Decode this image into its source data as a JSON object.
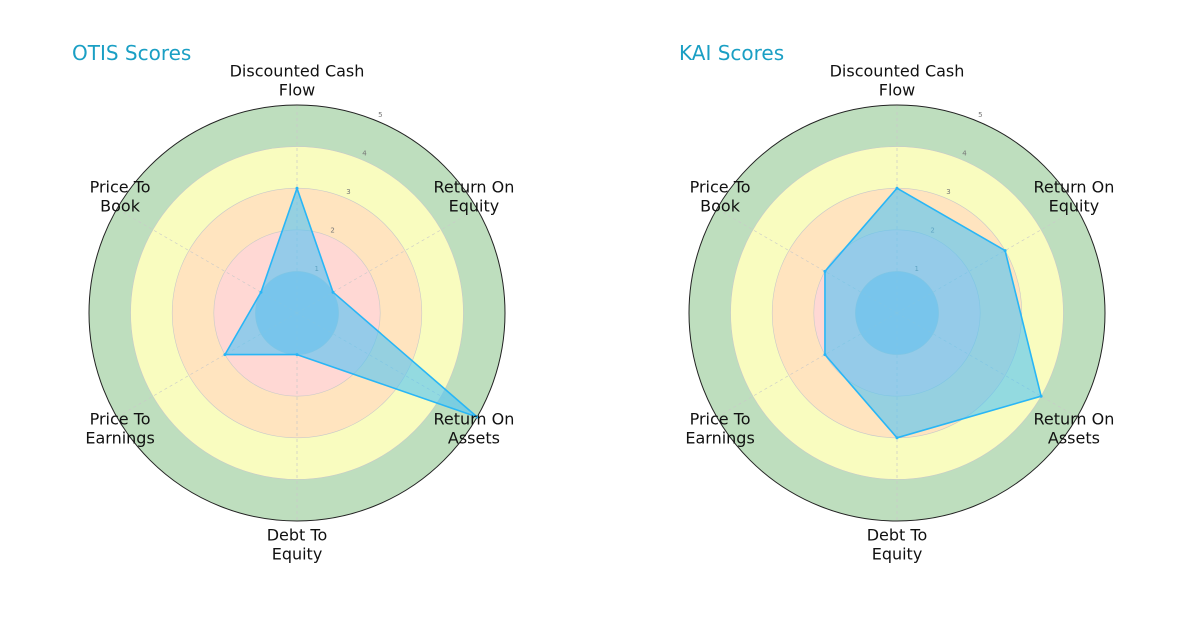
{
  "chart_data": [
    {
      "type": "radar",
      "title": "OTIS Scores",
      "axes": [
        [
          "Discounted Cash",
          "Flow"
        ],
        [
          "Return On",
          "Equity"
        ],
        [
          "Return On",
          "Assets"
        ],
        [
          "Debt To",
          "Equity"
        ],
        [
          "Price To",
          "Earnings"
        ],
        [
          "Price To",
          "Book"
        ]
      ],
      "values": [
        3,
        1,
        5,
        1,
        2,
        1
      ],
      "rlim": [
        0,
        5
      ],
      "rticks": [
        "1",
        "2",
        "3",
        "4",
        "5"
      ],
      "grid": true,
      "colors": {
        "fill": "#4fc3f7",
        "line": "#29b6f6"
      }
    },
    {
      "type": "radar",
      "title": "KAI Scores",
      "axes": [
        [
          "Discounted Cash",
          "Flow"
        ],
        [
          "Return On",
          "Equity"
        ],
        [
          "Return On",
          "Assets"
        ],
        [
          "Debt To",
          "Equity"
        ],
        [
          "Price To",
          "Earnings"
        ],
        [
          "Price To",
          "Book"
        ]
      ],
      "values": [
        3,
        3,
        4,
        3,
        2,
        2
      ],
      "rlim": [
        0,
        5
      ],
      "rticks": [
        "1",
        "2",
        "3",
        "4",
        "5"
      ],
      "grid": true,
      "colors": {
        "fill": "#4fc3f7",
        "line": "#29b6f6"
      }
    }
  ],
  "bands": {
    "colors": [
      "#b7dab7",
      "#ffffbf",
      "#ffe1bf",
      "#ffd6d6",
      "#a9c4dd"
    ]
  }
}
